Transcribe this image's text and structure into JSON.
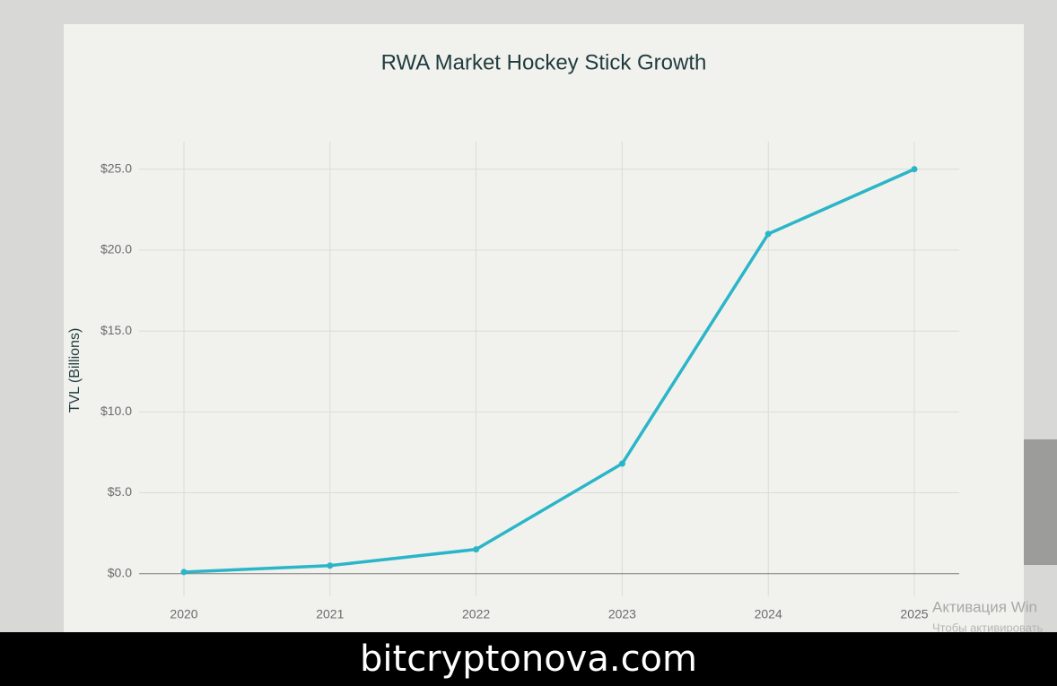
{
  "chart_data": {
    "type": "line",
    "title": "RWA Market Hockey Stick Growth",
    "y_label": "TVL (Billions)",
    "categories": [
      "2020",
      "2021",
      "2022",
      "2023",
      "2024",
      "2025"
    ],
    "series": [
      {
        "color": "#2bb5c8",
        "values": [
          0.1,
          0.5,
          1.5,
          6.8,
          21.0,
          25.0
        ]
      }
    ],
    "ylim": [
      -1.4,
      26.7
    ],
    "yticks": [
      {
        "value": 0,
        "label": "$0.0"
      },
      {
        "value": 5,
        "label": "$5.0"
      },
      {
        "value": 10,
        "label": "$10.0"
      },
      {
        "value": 15,
        "label": "$15.0"
      },
      {
        "value": 20,
        "label": "$20.0"
      },
      {
        "value": 25,
        "label": "$25.0"
      }
    ],
    "grid": true
  },
  "watermark": "bitcryptonova.com",
  "os_notice": {
    "title": "Активация Win",
    "text": "Чтобы активировать"
  }
}
